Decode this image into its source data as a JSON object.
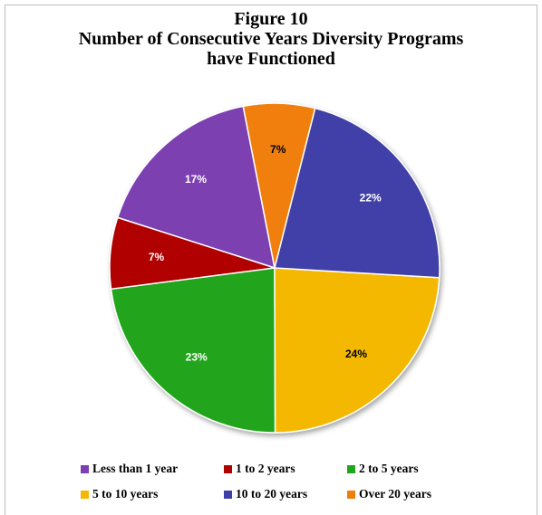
{
  "chart_data": {
    "type": "pie",
    "title": "Figure 10",
    "subtitle_lines": [
      "Number of Consecutive Years Diversity Programs",
      "have Functioned"
    ],
    "legend_position": "bottom",
    "slices": [
      {
        "label": "Less than 1 year",
        "value": 17,
        "display": "17%",
        "color": "#7b3fb0"
      },
      {
        "label": "1 to 2 years",
        "value": 7,
        "display": "7%",
        "color": "#b00000"
      },
      {
        "label": "2 to 5 years",
        "value": 23,
        "display": "23%",
        "color": "#22a51d"
      },
      {
        "label": "5 to 10 years",
        "value": 24,
        "display": "24%",
        "color": "#f4b800"
      },
      {
        "label": "10 to 20 years",
        "value": 22,
        "display": "22%",
        "color": "#3f3fa8"
      },
      {
        "label": "Over 20 years",
        "value": 7,
        "display": "7%",
        "color": "#f07f09"
      }
    ]
  }
}
